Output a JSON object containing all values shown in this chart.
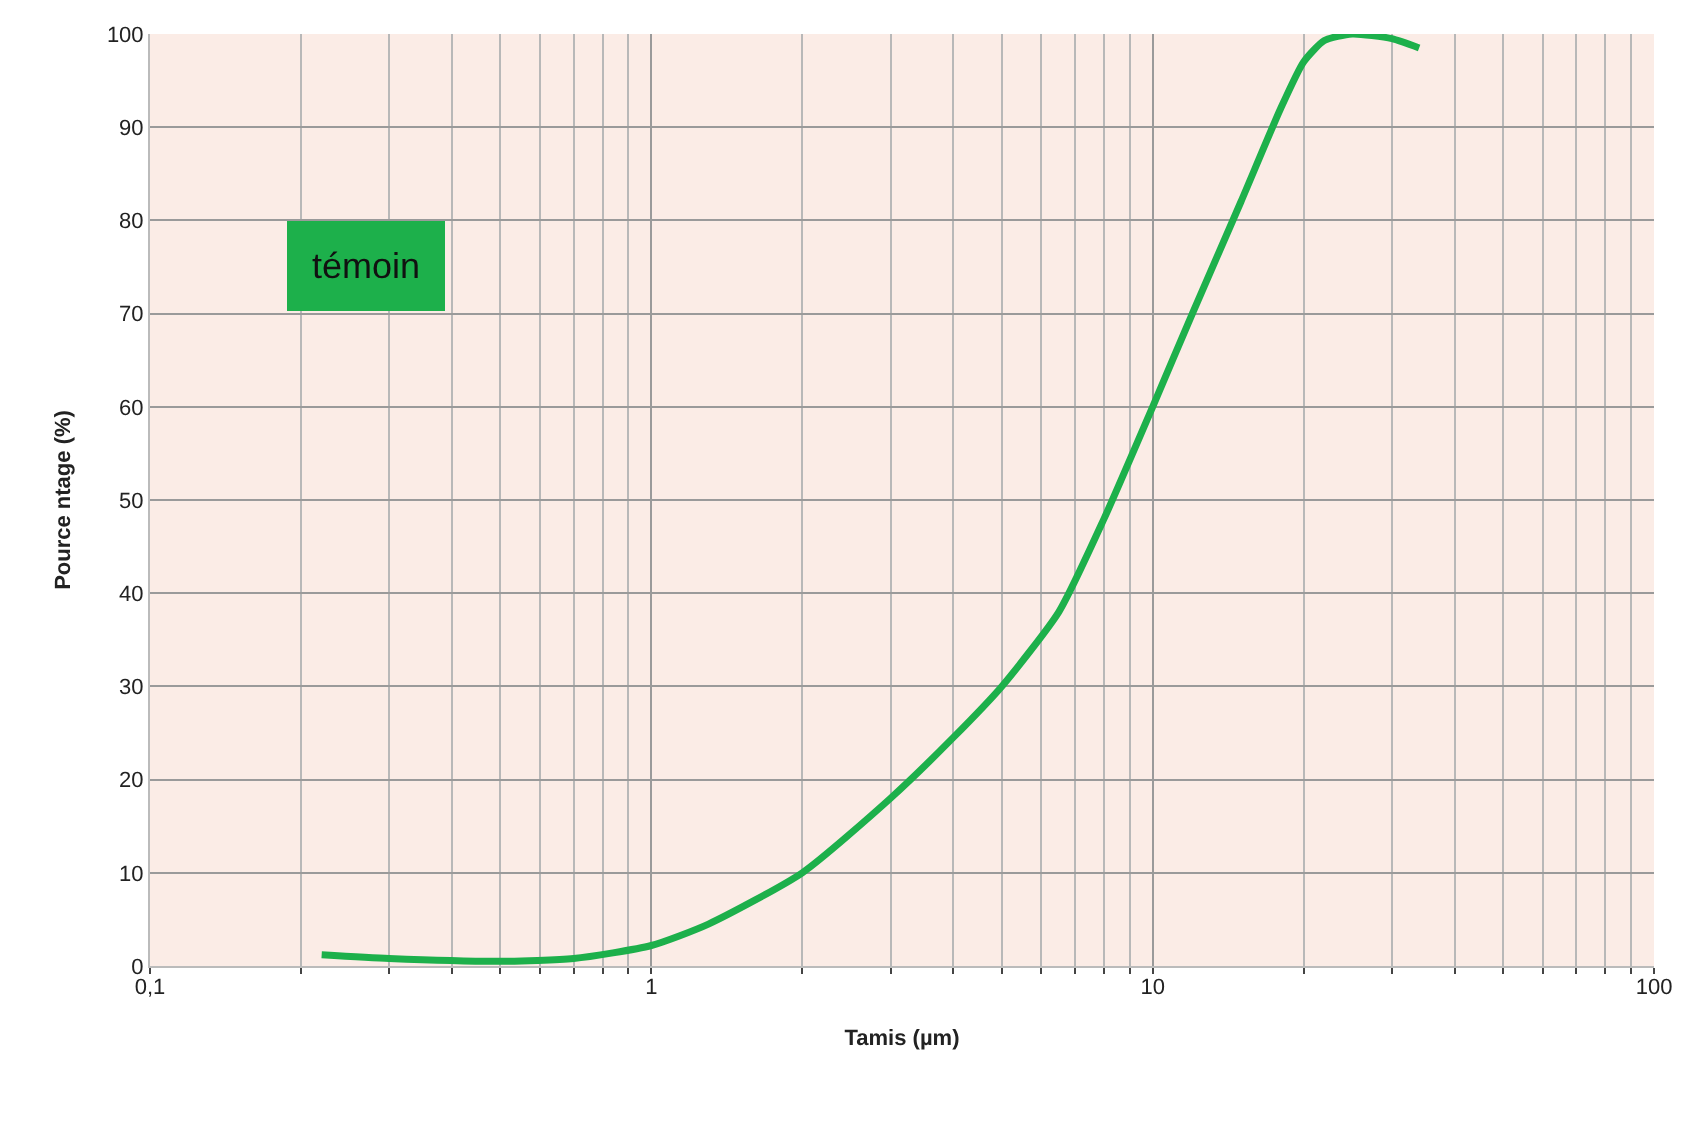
{
  "chart_data": {
    "type": "line",
    "xlabel": "Tamis (µm)",
    "ylabel": "Pource ntage (%)",
    "annotations": [
      "témoin"
    ],
    "log": "x",
    "grid": true,
    "legend": false,
    "marker": "none",
    "line_style": "solid",
    "xlim": [
      0.1,
      100
    ],
    "xticks": [
      {
        "value": 0.1,
        "label": "0,1"
      },
      1,
      10,
      100
    ],
    "ylim": [
      0,
      100
    ],
    "yticks": [
      0,
      10,
      20,
      30,
      40,
      50,
      60,
      70,
      80,
      90,
      100
    ],
    "series": [
      {
        "color": "#1db04b",
        "x": [
          0.22,
          0.3,
          0.5,
          0.7,
          1,
          1.3,
          2,
          3,
          4,
          5,
          6.5,
          8,
          10,
          12,
          15,
          18,
          20,
          22,
          25,
          30,
          34
        ],
        "values": [
          1.2,
          0.8,
          0.5,
          0.8,
          2.2,
          4.5,
          10,
          18,
          24.5,
          30,
          38,
          48,
          60,
          70,
          82,
          92,
          97,
          99.3,
          100,
          99.5,
          98.5
        ]
      }
    ]
  }
}
